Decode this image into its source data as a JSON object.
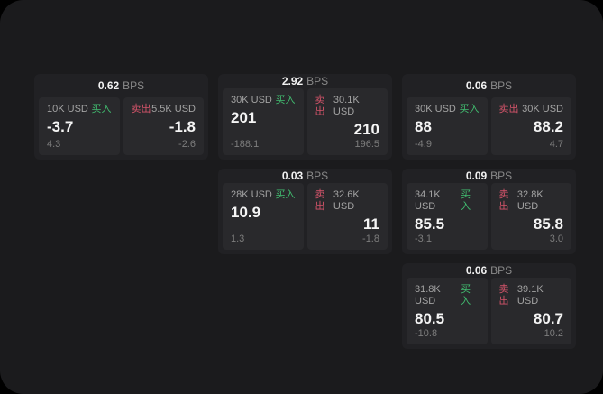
{
  "labels": {
    "buy": "买入",
    "sell": "卖出",
    "bps": "BPS"
  },
  "colors": {
    "outer_background": "#000000",
    "panel_background": "#1b1b1d",
    "card_background": "#212124",
    "tile_background": "#29292c",
    "buy_green": "#41bd70",
    "sell_red": "#d4546a",
    "value_white": "#f5f5f5",
    "muted_gray": "#8a8a8a"
  },
  "cards": [
    {
      "bps_value": "0.62",
      "buy": {
        "amount": "10K USD",
        "price": "-3.7",
        "delta": "4.3"
      },
      "sell": {
        "amount": "5.5K USD",
        "price": "-1.8",
        "delta": "-2.6"
      }
    },
    {
      "bps_value": "2.92",
      "buy": {
        "amount": "30K USD",
        "price": "201",
        "delta": "-188.1"
      },
      "sell": {
        "amount": "30.1K USD",
        "price": "210",
        "delta": "196.5"
      }
    },
    {
      "bps_value": "0.06",
      "buy": {
        "amount": "30K USD",
        "price": "88",
        "delta": "-4.9"
      },
      "sell": {
        "amount": "30K USD",
        "price": "88.2",
        "delta": "4.7"
      }
    },
    {
      "bps_value": "0.03",
      "buy": {
        "amount": "28K USD",
        "price": "10.9",
        "delta": "1.3"
      },
      "sell": {
        "amount": "32.6K USD",
        "price": "11",
        "delta": "-1.8"
      }
    },
    {
      "bps_value": "0.09",
      "buy": {
        "amount": "34.1K USD",
        "price": "85.5",
        "delta": "-3.1"
      },
      "sell": {
        "amount": "32.8K USD",
        "price": "85.8",
        "delta": "3.0"
      }
    },
    {
      "bps_value": "0.06",
      "buy": {
        "amount": "31.8K USD",
        "price": "80.5",
        "delta": "-10.8"
      },
      "sell": {
        "amount": "39.1K USD",
        "price": "80.7",
        "delta": "10.2"
      }
    }
  ]
}
